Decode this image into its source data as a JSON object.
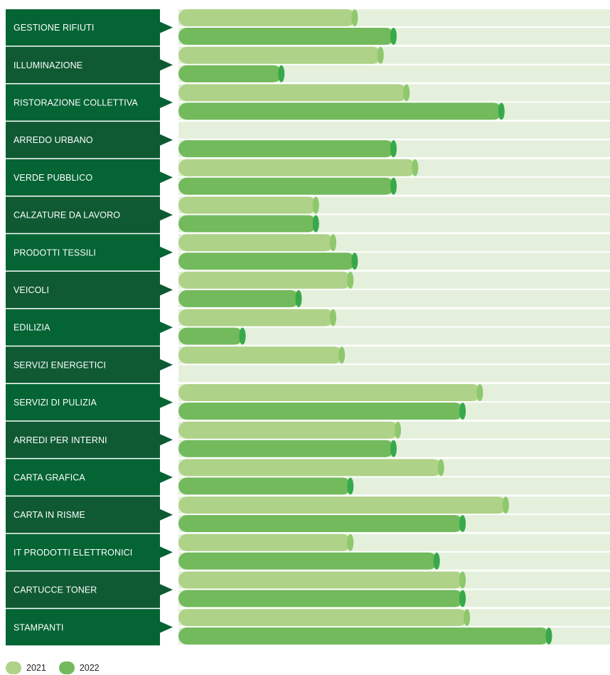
{
  "chart_data": {
    "type": "bar",
    "orientation": "horizontal",
    "categories": [
      "GESTIONE RIFIUTI",
      "ILLUMINAZIONE",
      "RISTORAZIONE COLLETTIVA",
      "ARREDO URBANO",
      "VERDE PUBBLICO",
      "CALZATURE DA LAVORO",
      "PRODOTTI TESSILI",
      "VEICOLI",
      "EDILIZIA",
      "SERVIZI ENERGETICI",
      "SERVIZI DI PULIZIA",
      "ARREDI PER INTERNI",
      "CARTA GRAFICA",
      "CARTA IN RISME",
      "IT PRODOTTI ELETTRONICI",
      "CARTUCCE TONER",
      "STAMPANTI"
    ],
    "series": [
      {
        "name": "2021",
        "color": "#aed287",
        "cap_color": "#8ec86c",
        "values": [
          41,
          47,
          53,
          0,
          55,
          32,
          36,
          40,
          36,
          38,
          70,
          51,
          61,
          76,
          40,
          66,
          67
        ]
      },
      {
        "name": "2022",
        "color": "#72ba5c",
        "cap_color": "#37a94b",
        "values": [
          50,
          24,
          75,
          50,
          50,
          32,
          41,
          28,
          15,
          0,
          66,
          50,
          40,
          66,
          60,
          66,
          86
        ]
      }
    ],
    "xlim": [
      0,
      100
    ],
    "title": "",
    "xlabel": "",
    "ylabel": "",
    "grid": false,
    "legend_position": "bottom-left",
    "colors": {
      "label_box": "#046434",
      "label_box_alt": "#0f5a33",
      "track": "#e4f0dc"
    }
  }
}
